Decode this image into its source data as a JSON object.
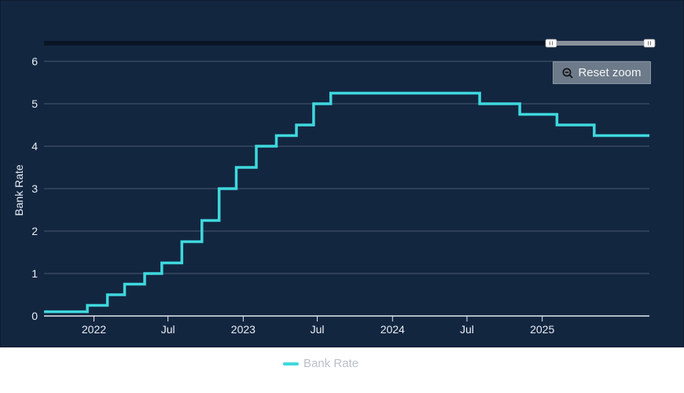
{
  "chart_data": {
    "type": "line",
    "step": true,
    "ylabel": "Bank Rate",
    "ylim": [
      0,
      6
    ],
    "yticks": [
      0,
      1,
      2,
      3,
      4,
      5,
      6
    ],
    "xlim": [
      "2021-09-01",
      "2025-09-20"
    ],
    "xticks": [
      {
        "date": "2022-01-01",
        "label": "2022"
      },
      {
        "date": "2022-07-01",
        "label": "Jul"
      },
      {
        "date": "2023-01-01",
        "label": "2023"
      },
      {
        "date": "2023-07-01",
        "label": "Jul"
      },
      {
        "date": "2024-01-01",
        "label": "2024"
      },
      {
        "date": "2024-07-01",
        "label": "Jul"
      },
      {
        "date": "2025-01-01",
        "label": "2025"
      }
    ],
    "grid": true,
    "legend_position": "bottom",
    "series": [
      {
        "name": "Bank Rate",
        "color": "#3ed8de",
        "points": [
          [
            "2021-09-01",
            0.1
          ],
          [
            "2021-12-16",
            0.25
          ],
          [
            "2022-02-03",
            0.5
          ],
          [
            "2022-03-17",
            0.75
          ],
          [
            "2022-05-05",
            1.0
          ],
          [
            "2022-06-16",
            1.25
          ],
          [
            "2022-08-04",
            1.75
          ],
          [
            "2022-09-22",
            2.25
          ],
          [
            "2022-11-03",
            3.0
          ],
          [
            "2022-12-15",
            3.5
          ],
          [
            "2023-02-02",
            4.0
          ],
          [
            "2023-03-23",
            4.25
          ],
          [
            "2023-05-11",
            4.5
          ],
          [
            "2023-06-22",
            5.0
          ],
          [
            "2023-08-03",
            5.25
          ],
          [
            "2024-08-01",
            5.0
          ],
          [
            "2024-11-07",
            4.75
          ],
          [
            "2025-02-06",
            4.5
          ],
          [
            "2025-05-08",
            4.25
          ],
          [
            "2025-09-20",
            4.25
          ]
        ]
      }
    ]
  },
  "zoom": {
    "reset_label": "Reset zoom",
    "reset_icon": "zoom-out-icon"
  },
  "legend": {
    "label": "Bank Rate",
    "color": "#3ed8de"
  }
}
